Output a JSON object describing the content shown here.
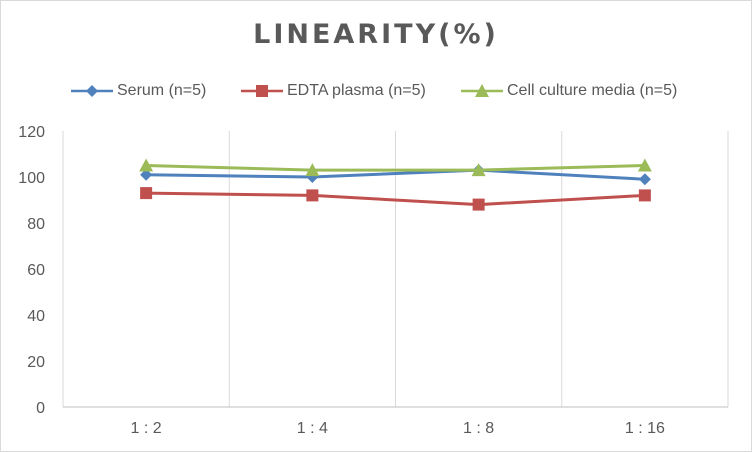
{
  "chart_data": {
    "type": "line",
    "title": "LINEARITY(%)",
    "categories": [
      "1:2",
      "1:4",
      "1:8",
      "1:16"
    ],
    "ylim": [
      0,
      120
    ],
    "yticks": [
      0,
      20,
      40,
      60,
      80,
      100,
      120
    ],
    "grid": "vertical",
    "legend_position": "top",
    "series": [
      {
        "name": "Serum (n=5)",
        "values": [
          101,
          100,
          103,
          99
        ],
        "color": "#4f81bd",
        "marker": "diamond"
      },
      {
        "name": "EDTA plasma (n=5)",
        "values": [
          93,
          92,
          88,
          92
        ],
        "color": "#c0504d",
        "marker": "square"
      },
      {
        "name": "Cell culture media (n=5)",
        "values": [
          105,
          103,
          103,
          105
        ],
        "color": "#9bbb59",
        "marker": "triangle"
      }
    ]
  }
}
